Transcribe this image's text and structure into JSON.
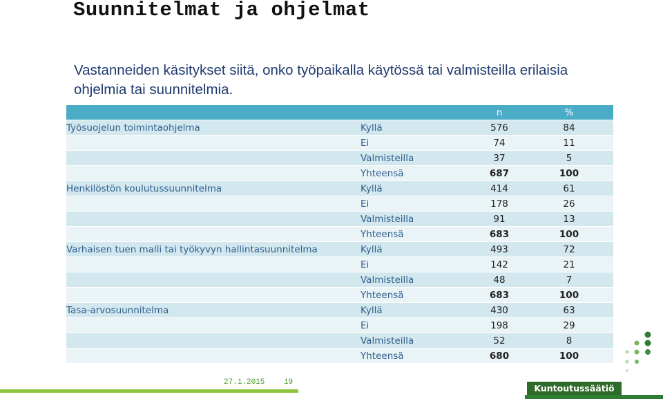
{
  "title": "Suunnitelmat ja ohjelmat",
  "subtitle": "Vastanneiden käsitykset siitä, onko työpaikalla käytössä tai valmisteilla erilaisia ohjelmia tai suunnitelmia.",
  "table": {
    "headers": [
      "",
      "",
      "n",
      "%"
    ],
    "rows": [
      {
        "program": "Työsuojelun toimintaohjelma",
        "answer": "Kyllä",
        "n": "576",
        "pct": "84"
      },
      {
        "program": "",
        "answer": "Ei",
        "n": "74",
        "pct": "11"
      },
      {
        "program": "",
        "answer": "Valmisteilla",
        "n": "37",
        "pct": "5"
      },
      {
        "program": "",
        "answer": "Yhteensä",
        "n": "687",
        "pct": "100"
      },
      {
        "program": "Henkilöstön koulutussuunnitelma",
        "answer": "Kyllä",
        "n": "414",
        "pct": "61"
      },
      {
        "program": "",
        "answer": "Ei",
        "n": "178",
        "pct": "26"
      },
      {
        "program": "",
        "answer": "Valmisteilla",
        "n": "91",
        "pct": "13"
      },
      {
        "program": "",
        "answer": "Yhteensä",
        "n": "683",
        "pct": "100"
      },
      {
        "program": "Varhaisen tuen malli tai työkyvyn hallintasuunnitelma",
        "answer": "Kyllä",
        "n": "493",
        "pct": "72"
      },
      {
        "program": "",
        "answer": "Ei",
        "n": "142",
        "pct": "21"
      },
      {
        "program": "",
        "answer": "Valmisteilla",
        "n": "48",
        "pct": "7"
      },
      {
        "program": "",
        "answer": "Yhteensä",
        "n": "683",
        "pct": "100"
      },
      {
        "program": "Tasa-arvosuunnitelma",
        "answer": "Kyllä",
        "n": "430",
        "pct": "63"
      },
      {
        "program": "",
        "answer": "Ei",
        "n": "198",
        "pct": "29"
      },
      {
        "program": "",
        "answer": "Valmisteilla",
        "n": "52",
        "pct": "8"
      },
      {
        "program": "",
        "answer": "Yhteensä",
        "n": "680",
        "pct": "100"
      }
    ]
  },
  "footer": {
    "date": "27.1.2015",
    "page": "19",
    "brand": "Kuntoutussäätiö"
  },
  "colors": {
    "header": "#4bacc6",
    "row_dark": "#d2e7ee",
    "row_light": "#eaf3f6",
    "brand_green": "#2f6b2a"
  }
}
